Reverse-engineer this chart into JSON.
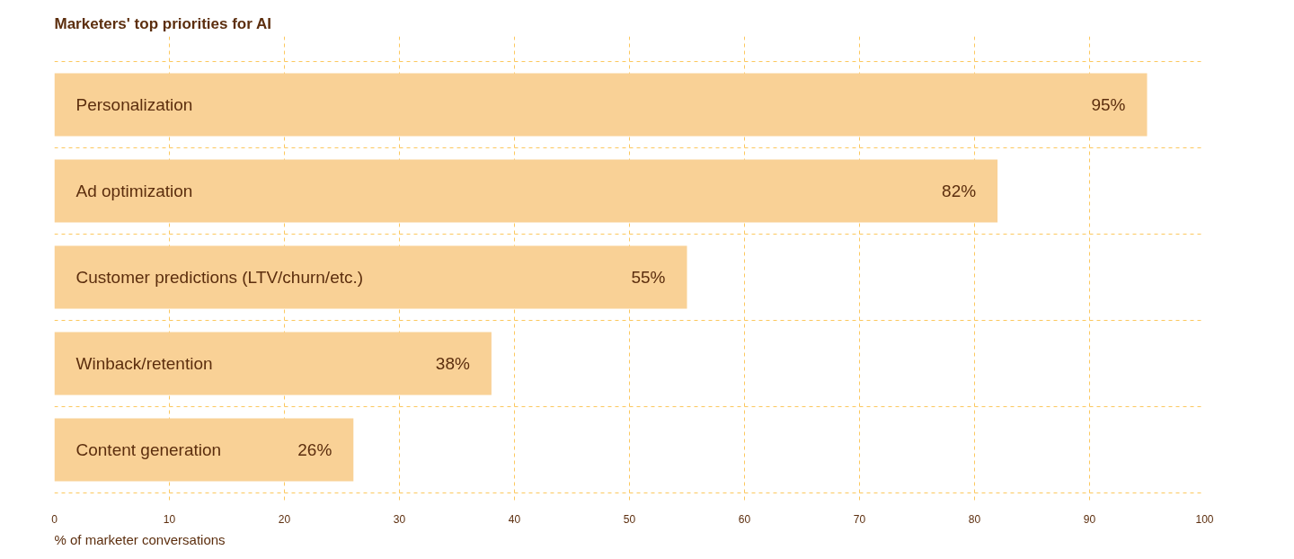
{
  "chart_data": {
    "type": "bar",
    "orientation": "horizontal",
    "title": "Marketers' top priorities for AI",
    "xlabel": "% of marketer conversations",
    "categories": [
      "Personalization",
      "Ad optimization",
      "Customer predictions (LTV/churn/etc.)",
      "Winback/retention",
      "Content generation"
    ],
    "values": [
      95,
      82,
      55,
      38,
      26
    ],
    "value_labels": [
      "95%",
      "82%",
      "55%",
      "38%",
      "26%"
    ],
    "color": "#f9d196",
    "xlim": [
      0,
      100
    ],
    "xticks": [
      0,
      10,
      20,
      30,
      40,
      50,
      60,
      70,
      80,
      90,
      100
    ],
    "grid": true
  }
}
